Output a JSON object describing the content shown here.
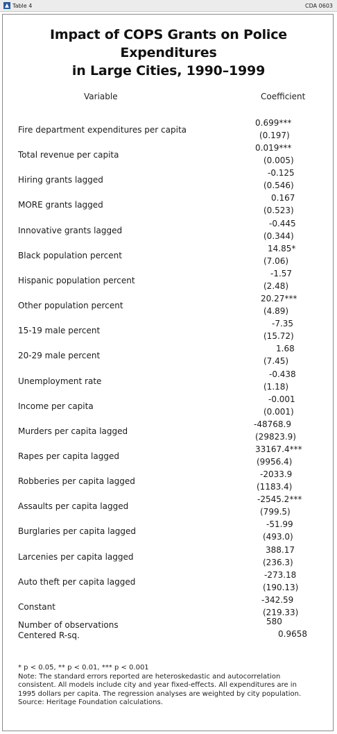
{
  "header": {
    "left_label": "Table 4",
    "right_label": "CDA 0603",
    "icon": "bell-logo-icon"
  },
  "title_line1": "Impact of COPS Grants on Police Expenditures",
  "title_line2": "in Large Cities, 1990–1999",
  "columns": {
    "variable": "Variable",
    "coefficient": "Coefficient"
  },
  "rows": [
    {
      "label": "Fire department expenditures per capita",
      "coef": "0.699***",
      "se": "(0.197)"
    },
    {
      "label": "Total revenue per capita",
      "coef": "0.019***",
      "se": "(0.005)"
    },
    {
      "label": "Hiring grants lagged",
      "coef": "-0.125",
      "se": "(0.546)"
    },
    {
      "label": "MORE grants lagged",
      "coef": "0.167",
      "se": "(0.523)"
    },
    {
      "label": "Innovative grants lagged",
      "coef": "-0.445",
      "se": "(0.344)"
    },
    {
      "label": "Black population percent",
      "coef": "14.85*",
      "se": "(7.06)"
    },
    {
      "label": "Hispanic population percent",
      "coef": "-1.57",
      "se": "(2.48)"
    },
    {
      "label": "Other population percent",
      "coef": "20.27***",
      "se": "(4.89)"
    },
    {
      "label": "15-19 male percent",
      "coef": "-7.35",
      "se": "(15.72)"
    },
    {
      "label": "20-29 male percent",
      "coef": "1.68",
      "se": "(7.45)"
    },
    {
      "label": "Unemployment rate",
      "coef": "-0.438",
      "se": "(1.18)"
    },
    {
      "label": "Income per capita",
      "coef": "-0.001",
      "se": "(0.001)"
    },
    {
      "label": "Murders per capita lagged",
      "coef": "-48768.9",
      "se": "(29823.9)"
    },
    {
      "label": "Rapes per capita lagged",
      "coef": "33167.4***",
      "se": "(9956.4)"
    },
    {
      "label": "Robberies per capita lagged",
      "coef": "-2033.9",
      "se": "(1183.4)"
    },
    {
      "label": "Assaults per capita lagged",
      "coef": "-2545.2***",
      "se": "(799.5)"
    },
    {
      "label": "Burglaries per capita lagged",
      "coef": "-51.99",
      "se": "(493.0)"
    },
    {
      "label": "Larcenies per capita lagged",
      "coef": "388.17",
      "se": "(236.3)"
    },
    {
      "label": "Auto theft per capita lagged",
      "coef": "-273.18",
      "se": "(190.13)"
    },
    {
      "label": "Constant",
      "coef": "-342.59",
      "se": "(219.33)"
    }
  ],
  "observations": {
    "label": "Number of observations",
    "value": "580"
  },
  "rsq": {
    "label": "Centered R-sq.",
    "value": "0.9658"
  },
  "notes": [
    "* p < 0.05, ** p < 0.01, *** p < 0.001",
    "Note: The standard errors reported are heteroskedastic and autocorrelation",
    "consistent. All models include city and year fixed-effects. All expenditures are in",
    "1995 dollars per capita. The regression analyses are weighted by city population.",
    "Source: Heritage Foundation calculations."
  ]
}
